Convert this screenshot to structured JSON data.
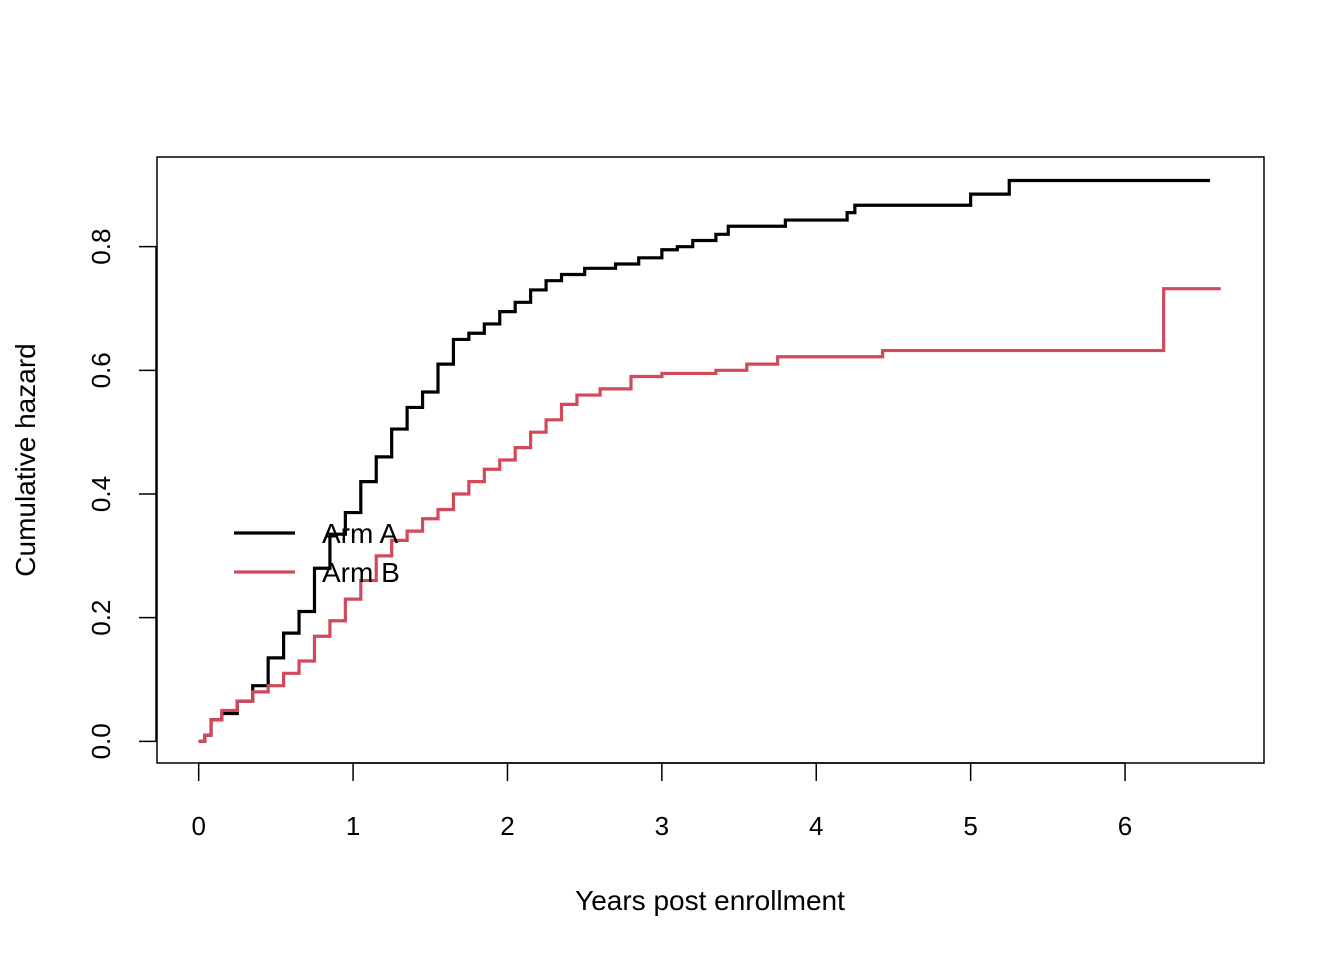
{
  "chart_data": {
    "type": "line",
    "step": true,
    "title": "",
    "xlabel": "Years post enrollment",
    "ylabel": "Cumulative hazard",
    "xlim": [
      -0.27,
      6.9
    ],
    "ylim": [
      -0.035,
      0.945
    ],
    "xticks": [
      0,
      1,
      2,
      3,
      4,
      5,
      6
    ],
    "xtick_labels": [
      "0",
      "1",
      "2",
      "3",
      "4",
      "5",
      "6"
    ],
    "yticks": [
      0.0,
      0.2,
      0.4,
      0.6,
      0.8
    ],
    "ytick_labels": [
      "0.0",
      "0.2",
      "0.4",
      "0.6",
      "0.8"
    ],
    "grid": false,
    "legend_position": "left-center",
    "series": [
      {
        "name": "Arm A",
        "color": "#000000",
        "x": [
          0,
          0.04,
          0.08,
          0.15,
          0.25,
          0.35,
          0.45,
          0.55,
          0.65,
          0.75,
          0.85,
          0.95,
          1.05,
          1.15,
          1.25,
          1.35,
          1.45,
          1.55,
          1.65,
          1.75,
          1.85,
          1.95,
          2.05,
          2.15,
          2.25,
          2.35,
          2.5,
          2.7,
          2.85,
          3.0,
          3.1,
          3.2,
          3.35,
          3.43,
          3.8,
          4.2,
          4.25,
          5.0,
          5.25,
          6.55
        ],
        "y": [
          0.0,
          0.01,
          0.035,
          0.045,
          0.065,
          0.09,
          0.135,
          0.175,
          0.21,
          0.28,
          0.335,
          0.37,
          0.42,
          0.46,
          0.505,
          0.54,
          0.565,
          0.61,
          0.65,
          0.66,
          0.675,
          0.695,
          0.71,
          0.73,
          0.745,
          0.755,
          0.765,
          0.772,
          0.782,
          0.795,
          0.8,
          0.81,
          0.82,
          0.833,
          0.843,
          0.855,
          0.867,
          0.885,
          0.907,
          0.907
        ]
      },
      {
        "name": "Arm B",
        "color": "#d1495b",
        "x": [
          0,
          0.04,
          0.08,
          0.15,
          0.25,
          0.35,
          0.45,
          0.55,
          0.65,
          0.75,
          0.85,
          0.95,
          1.05,
          1.15,
          1.25,
          1.35,
          1.45,
          1.55,
          1.65,
          1.75,
          1.85,
          1.95,
          2.05,
          2.15,
          2.25,
          2.35,
          2.45,
          2.6,
          2.8,
          3.0,
          3.35,
          3.55,
          3.75,
          4.43,
          6.25,
          6.62
        ],
        "y": [
          0.0,
          0.01,
          0.035,
          0.05,
          0.065,
          0.08,
          0.09,
          0.11,
          0.13,
          0.17,
          0.195,
          0.23,
          0.26,
          0.3,
          0.325,
          0.34,
          0.36,
          0.375,
          0.4,
          0.42,
          0.44,
          0.455,
          0.475,
          0.5,
          0.52,
          0.545,
          0.56,
          0.57,
          0.59,
          0.595,
          0.6,
          0.61,
          0.622,
          0.632,
          0.732,
          0.732
        ]
      }
    ]
  }
}
